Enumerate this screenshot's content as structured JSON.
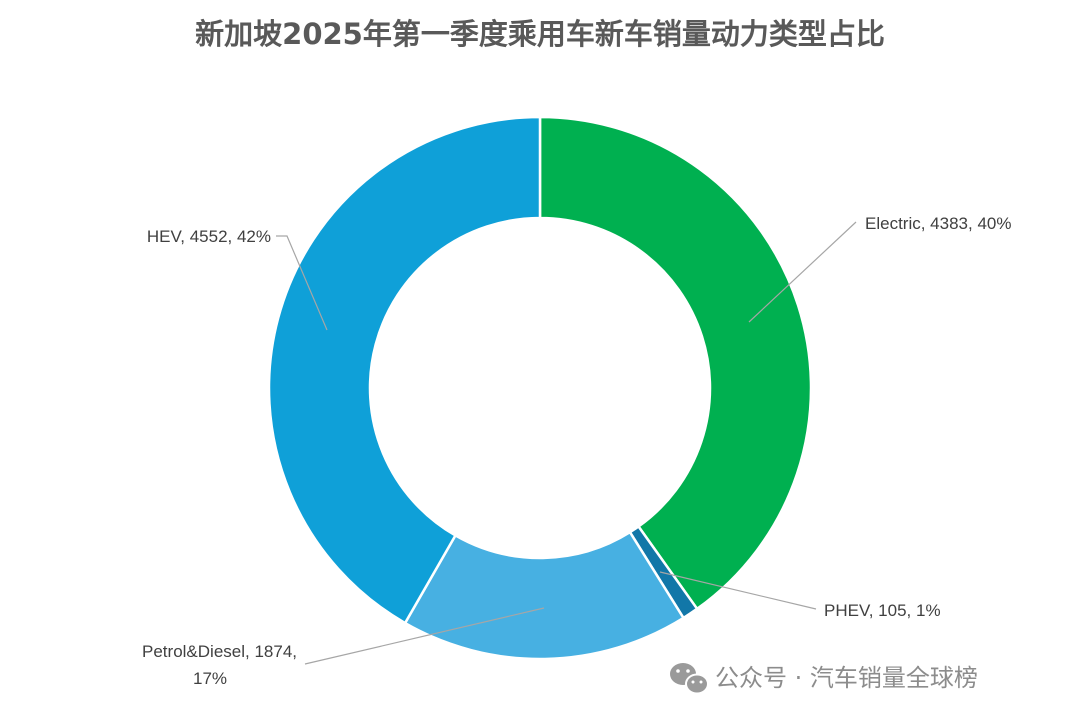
{
  "chart_data": {
    "type": "pie",
    "title": "新加坡2025年第一季度乘用车新车销量动力类型占比",
    "hole": true,
    "slices": [
      {
        "label": "Electric",
        "value": 4383,
        "percent": "40%",
        "color": "#00b050"
      },
      {
        "label": "PHEV",
        "value": 105,
        "percent": "1%",
        "color": "#1277a8"
      },
      {
        "label": "Petrol&Diesel",
        "value": 1874,
        "percent": "17%",
        "color": "#47b0e2"
      },
      {
        "label": "HEV",
        "value": 4552,
        "percent": "42%",
        "color": "#0fa0d8"
      }
    ],
    "data_labels": {
      "electric": "Electric, 4383, 40%",
      "phev": "PHEV, 105, 1%",
      "petrol_line1": "Petrol&Diesel, 1874,",
      "petrol_line2": "17%",
      "hev": "HEV, 4552, 42%"
    },
    "legend": "none"
  },
  "watermark": {
    "text": "公众号 · 汽车销量全球榜",
    "icon": "wechat-icon"
  }
}
